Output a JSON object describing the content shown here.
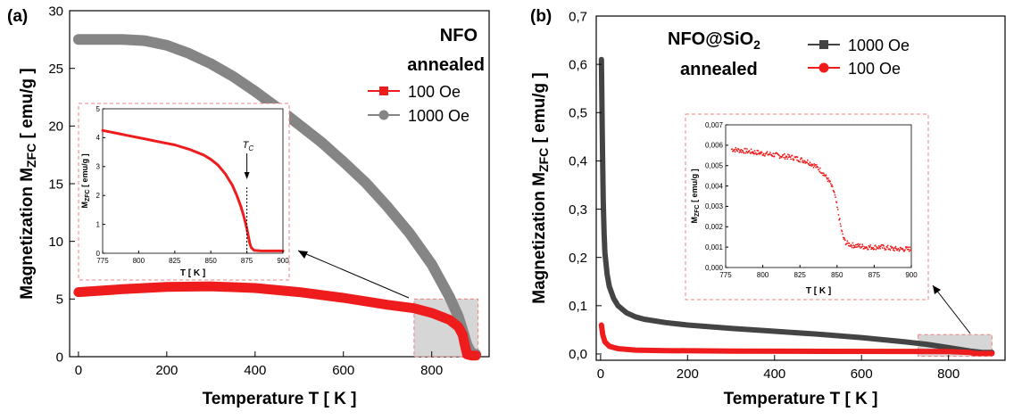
{
  "colors": {
    "red": "#ee1c1c",
    "gray": "#858585",
    "dark": "#444444",
    "inset_border": "#f08080",
    "highlight": "#c8c8c8"
  },
  "panels": [
    {
      "tag": "(a)",
      "label_line1": "NFO",
      "label_line2": "annealed"
    },
    {
      "tag": "(b)",
      "label_line1": "NFO@SiO",
      "label_sub": "2",
      "label_line2": "annealed"
    }
  ],
  "chart_data": [
    {
      "type": "line",
      "panel": "(a)",
      "xlabel": "Temperature T [ K ]",
      "ylabel_main": "Magnetization M",
      "ylabel_sub": "ZFC",
      "ylabel_unit": " [ emu/g ]",
      "xlim": [
        -20,
        930
      ],
      "ylim": [
        0,
        30
      ],
      "xticks": [
        "0",
        "200",
        "400",
        "600",
        "800"
      ],
      "xtick_values": [
        0,
        200,
        400,
        600,
        800
      ],
      "yticks": [
        "0",
        "5",
        "10",
        "15",
        "20",
        "25",
        "30"
      ],
      "ytick_values": [
        0,
        5,
        10,
        15,
        20,
        25,
        30
      ],
      "legend_position": "right",
      "series": [
        {
          "name": "100 Oe",
          "marker": "square",
          "color": "#ee1c1c",
          "x": [
            0,
            100,
            200,
            300,
            400,
            500,
            600,
            700,
            760,
            800,
            840,
            860,
            870,
            875,
            880,
            890,
            900
          ],
          "y": [
            5.6,
            5.85,
            6.05,
            6.1,
            5.95,
            5.6,
            5.1,
            4.5,
            4.2,
            3.8,
            3.2,
            2.6,
            1.9,
            1.0,
            0.2,
            0.1,
            0.1
          ]
        },
        {
          "name": "1000 Oe",
          "marker": "circle",
          "color": "#858585",
          "x": [
            0,
            50,
            100,
            150,
            200,
            250,
            300,
            350,
            400,
            450,
            500,
            550,
            600,
            650,
            700,
            750,
            800,
            840,
            860,
            870,
            880,
            890,
            900
          ],
          "y": [
            27.5,
            27.5,
            27.5,
            27.4,
            27.0,
            26.3,
            25.4,
            24.3,
            23.0,
            21.6,
            20.1,
            18.6,
            16.9,
            15.1,
            13.0,
            10.7,
            8.0,
            5.2,
            3.5,
            2.3,
            1.0,
            0.3,
            0.2
          ]
        }
      ],
      "highlight_region": {
        "x": [
          760,
          905
        ],
        "y": [
          0,
          5
        ]
      },
      "inset": {
        "xlabel": "T [ K ]",
        "ylabel_main": "M",
        "ylabel_sub": "ZFC",
        "ylabel_unit": " [ emu/g ]",
        "xlim": [
          775,
          900
        ],
        "ylim": [
          0,
          5
        ],
        "xticks": [
          "775",
          "800",
          "825",
          "850",
          "875",
          "900"
        ],
        "xtick_values": [
          775,
          800,
          825,
          850,
          875,
          900
        ],
        "yticks": [
          "0",
          "1",
          "2",
          "3",
          "4",
          "5"
        ],
        "ytick_values": [
          0,
          1,
          2,
          3,
          4,
          5
        ],
        "annotation": "T",
        "annotation_sub": "C",
        "tc_value": 875,
        "series": [
          {
            "name": "100 Oe",
            "color": "#ee1c1c",
            "x": [
              775,
              785,
              795,
              805,
              815,
              825,
              835,
              845,
              850,
              855,
              860,
              865,
              868,
              871,
              873,
              875,
              876,
              877,
              878,
              880,
              885,
              890,
              895,
              900
            ],
            "y": [
              4.25,
              4.15,
              4.05,
              3.95,
              3.85,
              3.75,
              3.6,
              3.4,
              3.25,
              3.05,
              2.75,
              2.35,
              2.0,
              1.6,
              1.25,
              0.85,
              0.6,
              0.35,
              0.2,
              0.1,
              0.08,
              0.08,
              0.08,
              0.08
            ]
          }
        ]
      }
    },
    {
      "type": "line",
      "panel": "(b)",
      "xlabel": "Temperature T [ K ]",
      "ylabel_main": "Magnetization M",
      "ylabel_sub": "ZFC",
      "ylabel_unit": " [ emu/g ]",
      "xlim": [
        -10,
        930
      ],
      "ylim": [
        0,
        0.7
      ],
      "xticks": [
        "0",
        "200",
        "400",
        "600",
        "800"
      ],
      "xtick_values": [
        0,
        200,
        400,
        600,
        800
      ],
      "yticks": [
        "0,0",
        "0,1",
        "0,2",
        "0,3",
        "0,4",
        "0,5",
        "0,6",
        "0,7"
      ],
      "ytick_values": [
        0,
        0.1,
        0.2,
        0.3,
        0.4,
        0.5,
        0.6,
        0.7
      ],
      "legend_position": "top-right",
      "series": [
        {
          "name": "1000 Oe",
          "marker": "square",
          "color": "#444444",
          "x": [
            2,
            4,
            6,
            8,
            10,
            15,
            20,
            30,
            40,
            60,
            80,
            100,
            150,
            200,
            300,
            400,
            500,
            600,
            700,
            750,
            800,
            850,
            880,
            900
          ],
          "y": [
            0.61,
            0.45,
            0.32,
            0.25,
            0.21,
            0.165,
            0.14,
            0.115,
            0.1,
            0.085,
            0.077,
            0.072,
            0.065,
            0.06,
            0.053,
            0.047,
            0.041,
            0.034,
            0.025,
            0.02,
            0.013,
            0.006,
            0.003,
            0.003
          ]
        },
        {
          "name": "100 Oe",
          "marker": "circle",
          "color": "#ee1c1c",
          "x": [
            2,
            5,
            10,
            20,
            40,
            80,
            150,
            300,
            500,
            700,
            800,
            850,
            860,
            900
          ],
          "y": [
            0.06,
            0.04,
            0.025,
            0.016,
            0.011,
            0.008,
            0.007,
            0.006,
            0.0055,
            0.0052,
            0.005,
            0.003,
            0.001,
            0.001
          ]
        }
      ],
      "highlight_region": {
        "x": [
          730,
          900
        ],
        "y": [
          -0.005,
          0.04
        ]
      },
      "inset": {
        "xlabel": "T [ K ]",
        "ylabel_main": "M",
        "ylabel_sub": "ZFC",
        "ylabel_unit": " [ emu/g ]",
        "xlim": [
          775,
          900
        ],
        "ylim": [
          0,
          0.007
        ],
        "xticks": [
          "775",
          "800",
          "825",
          "850",
          "875",
          "900"
        ],
        "xtick_values": [
          775,
          800,
          825,
          850,
          875,
          900
        ],
        "yticks": [
          "0,000",
          "0,001",
          "0,002",
          "0,003",
          "0,004",
          "0,005",
          "0,006",
          "0,007"
        ],
        "ytick_values": [
          0,
          0.001,
          0.002,
          0.003,
          0.004,
          0.005,
          0.006,
          0.007
        ],
        "series": [
          {
            "name": "100 Oe",
            "color": "#ee1c1c",
            "x": [
              779,
              790,
              800,
              810,
              820,
              830,
              835,
              840,
              845,
              848,
              850,
              852,
              854,
              856,
              860,
              870,
              880,
              890,
              900
            ],
            "y": [
              0.0058,
              0.0057,
              0.0056,
              0.0055,
              0.0054,
              0.0052,
              0.005,
              0.0047,
              0.0042,
              0.0037,
              0.003,
              0.0022,
              0.0015,
              0.0012,
              0.0011,
              0.001,
              0.001,
              0.0009,
              0.0009
            ]
          }
        ]
      }
    }
  ]
}
